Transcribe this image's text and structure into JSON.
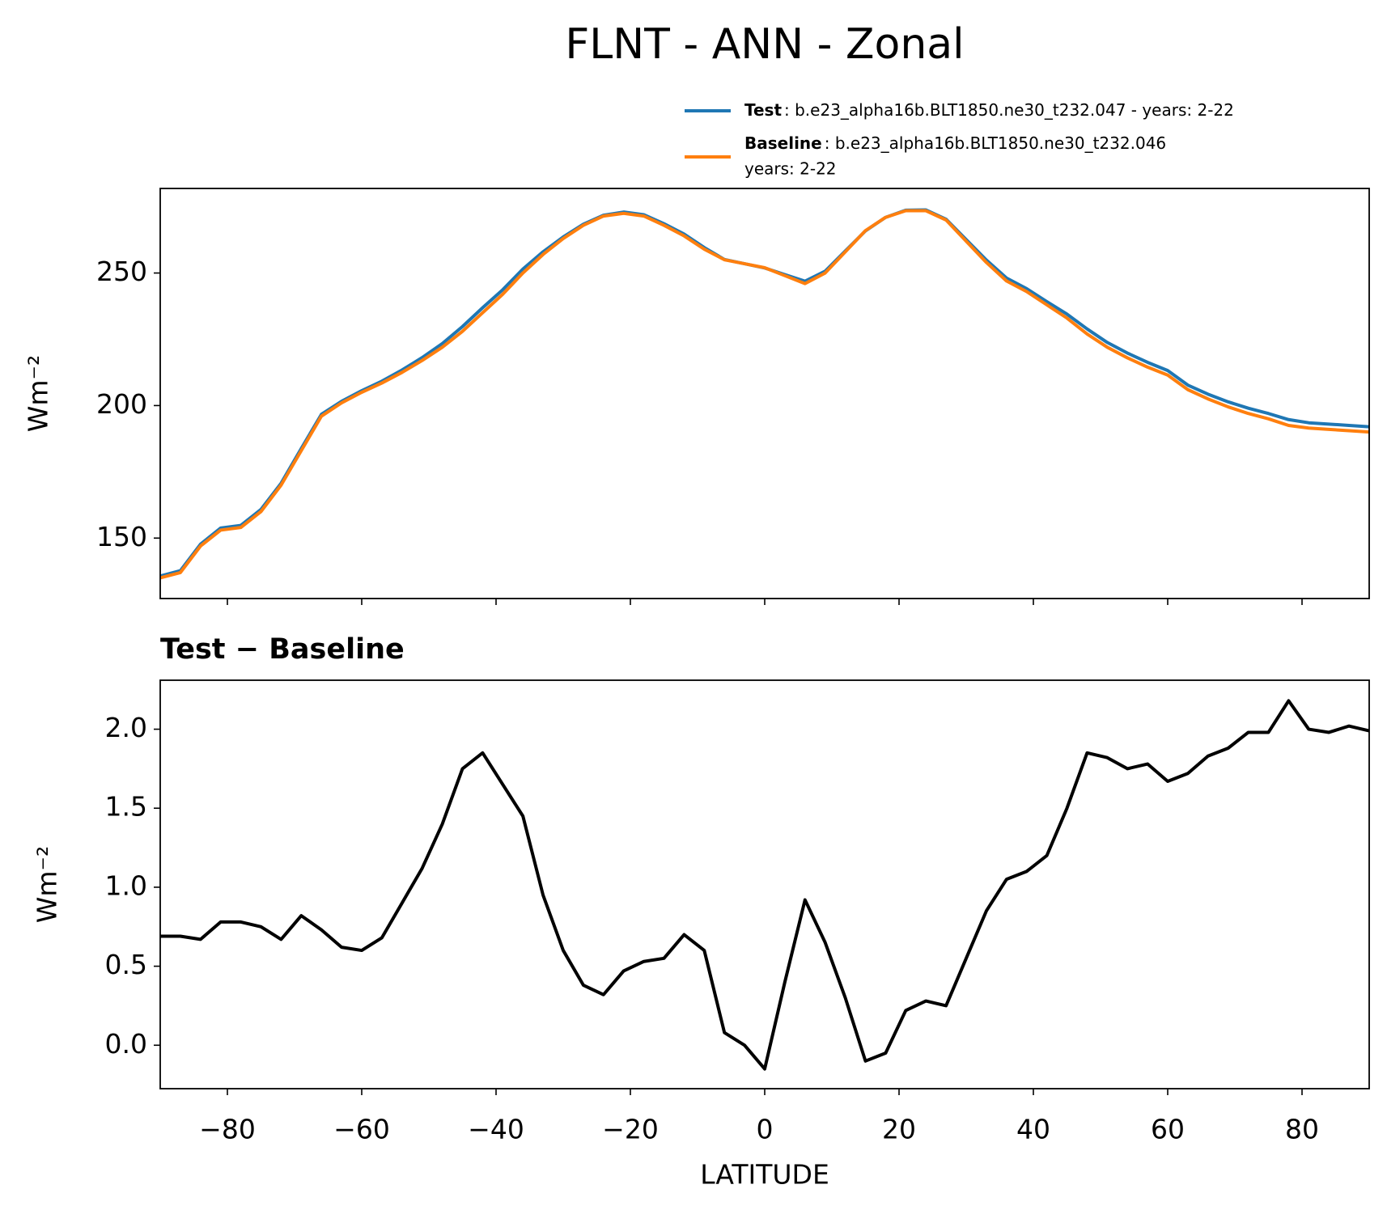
{
  "chart_data": [
    {
      "type": "line",
      "title": "FLNT - ANN - Zonal",
      "ylabel": "Wm⁻²",
      "x": [
        -90,
        -87,
        -84,
        -81,
        -78,
        -75,
        -72,
        -69,
        -66,
        -63,
        -60,
        -57,
        -54,
        -51,
        -48,
        -45,
        -42,
        -39,
        -36,
        -33,
        -30,
        -27,
        -24,
        -21,
        -18,
        -15,
        -12,
        -9,
        -6,
        -3,
        0,
        3,
        6,
        9,
        12,
        15,
        18,
        21,
        24,
        27,
        30,
        33,
        36,
        39,
        42,
        45,
        48,
        51,
        54,
        57,
        60,
        63,
        66,
        69,
        72,
        75,
        78,
        81,
        84,
        87,
        90
      ],
      "series": [
        {
          "name": "Test",
          "description": [
            ": b.e23_alpha16b.BLT1850.ne30_t232.047 - years: 2-22"
          ],
          "color": "#1f77b4",
          "values": [
            135.7,
            137.7,
            147.7,
            153.8,
            154.8,
            160.8,
            170.7,
            183.8,
            196.7,
            201.6,
            205.6,
            209.2,
            213.4,
            218.1,
            223.4,
            229.8,
            236.9,
            243.7,
            251.5,
            258.0,
            263.6,
            268.4,
            271.8,
            273.0,
            272.0,
            268.6,
            264.7,
            259.6,
            255.1,
            253.5,
            251.9,
            249.4,
            246.9,
            250.7,
            258.3,
            265.9,
            271.0,
            273.7,
            273.8,
            270.3,
            262.6,
            254.9,
            248.1,
            244.1,
            239.2,
            234.5,
            228.9,
            223.8,
            219.8,
            216.3,
            213.2,
            207.7,
            204.3,
            201.4,
            199.0,
            197.0,
            194.7,
            193.5,
            193.0,
            192.5,
            192.0
          ]
        },
        {
          "name": "Baseline",
          "description": [
            ": b.e23_alpha16b.BLT1850.ne30_t232.046",
            "years: 2-22"
          ],
          "color": "#ff7f0e",
          "values": [
            135,
            137,
            147,
            153,
            154,
            160,
            170,
            183,
            196,
            201,
            205,
            208.5,
            212.5,
            217,
            222,
            228,
            235,
            242,
            250,
            257,
            263,
            268,
            271.5,
            272.5,
            271.5,
            268,
            264,
            259,
            255,
            253.5,
            252,
            249,
            246,
            250,
            258,
            266,
            271,
            273.5,
            273.5,
            270,
            262,
            254,
            247,
            243,
            238,
            233,
            227,
            222,
            218,
            214.5,
            211.5,
            206,
            202.5,
            199.5,
            197,
            195,
            192.5,
            191.5,
            191,
            190.5,
            190
          ]
        }
      ],
      "xlim": [
        -90,
        90
      ],
      "xticks": [
        -80,
        -60,
        -40,
        -20,
        0,
        20,
        40,
        60,
        80
      ],
      "ylim": [
        127.2,
        281.9
      ],
      "yticks": [
        150,
        200,
        250
      ]
    },
    {
      "type": "line",
      "title": "Test − Baseline",
      "ylabel": "Wm⁻²",
      "xlabel": "LATITUDE",
      "x": [
        -90,
        -87,
        -84,
        -81,
        -78,
        -75,
        -72,
        -69,
        -66,
        -63,
        -60,
        -57,
        -54,
        -51,
        -48,
        -45,
        -42,
        -39,
        -36,
        -33,
        -30,
        -27,
        -24,
        -21,
        -18,
        -15,
        -12,
        -9,
        -6,
        -3,
        0,
        3,
        6,
        9,
        12,
        15,
        18,
        21,
        24,
        27,
        30,
        33,
        36,
        39,
        42,
        45,
        48,
        51,
        54,
        57,
        60,
        63,
        66,
        69,
        72,
        75,
        78,
        81,
        84,
        87,
        90
      ],
      "series": [
        {
          "color": "#000000",
          "values": [
            0.69,
            0.69,
            0.67,
            0.78,
            0.78,
            0.75,
            0.67,
            0.82,
            0.73,
            0.62,
            0.6,
            0.68,
            0.9,
            1.12,
            1.4,
            1.75,
            1.85,
            1.65,
            1.45,
            0.95,
            0.6,
            0.38,
            0.32,
            0.47,
            0.53,
            0.55,
            0.7,
            0.6,
            0.08,
            0.0,
            -0.15,
            0.4,
            0.92,
            0.65,
            0.3,
            -0.1,
            -0.05,
            0.22,
            0.28,
            0.25,
            0.55,
            0.85,
            1.05,
            1.1,
            1.2,
            1.5,
            1.85,
            1.82,
            1.75,
            1.78,
            1.67,
            1.72,
            1.83,
            1.88,
            1.98,
            1.98,
            2.18,
            2.0,
            1.98,
            2.02,
            1.99
          ]
        }
      ],
      "xlim": [
        -90,
        90
      ],
      "xticks": [
        {
          "value": -80,
          "label": "−80"
        },
        {
          "value": -60,
          "label": "−60"
        },
        {
          "value": -40,
          "label": "−40"
        },
        {
          "value": -20,
          "label": "−20"
        },
        0,
        20,
        40,
        60,
        80
      ],
      "ylim": [
        -0.275,
        2.31
      ],
      "yticks": [
        {
          "value": 0,
          "label": "0.0"
        },
        0.5,
        {
          "value": 1,
          "label": "1.0"
        },
        1.5,
        {
          "value": 2,
          "label": "2.0"
        }
      ]
    }
  ]
}
